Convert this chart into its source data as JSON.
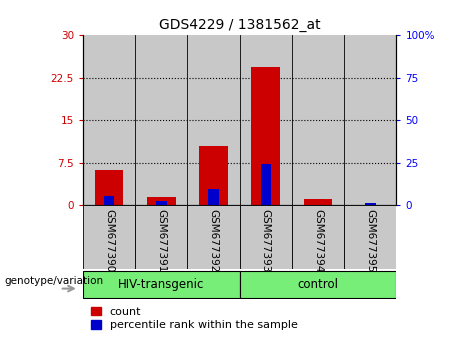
{
  "title": "GDS4229 / 1381562_at",
  "samples": [
    "GSM677390",
    "GSM677391",
    "GSM677392",
    "GSM677393",
    "GSM677394",
    "GSM677395"
  ],
  "red_values": [
    6.3,
    1.5,
    10.5,
    24.5,
    1.2,
    0.0
  ],
  "blue_values": [
    5.5,
    2.5,
    9.5,
    24.5,
    0.0,
    1.5
  ],
  "left_ylim": [
    0,
    30
  ],
  "right_ylim": [
    0,
    100
  ],
  "left_yticks": [
    0,
    7.5,
    15,
    22.5,
    30
  ],
  "right_yticks": [
    0,
    25,
    50,
    75,
    100
  ],
  "left_yticklabels": [
    "0",
    "7.5",
    "15",
    "22.5",
    "30"
  ],
  "right_yticklabels": [
    "0",
    "25",
    "50",
    "75",
    "100%"
  ],
  "groups": [
    {
      "label": "HIV-transgenic",
      "start": 0,
      "end": 3
    },
    {
      "label": "control",
      "start": 3,
      "end": 6
    }
  ],
  "group_label": "genotype/variation",
  "red_color": "#CC0000",
  "blue_color": "#0000CC",
  "col_bg_color": "#C8C8C8",
  "group_bg_color": "#77EE77",
  "title_fontsize": 10,
  "tick_fontsize": 7.5,
  "legend_fontsize": 8,
  "group_fontsize": 8.5,
  "genotype_fontsize": 7.5
}
